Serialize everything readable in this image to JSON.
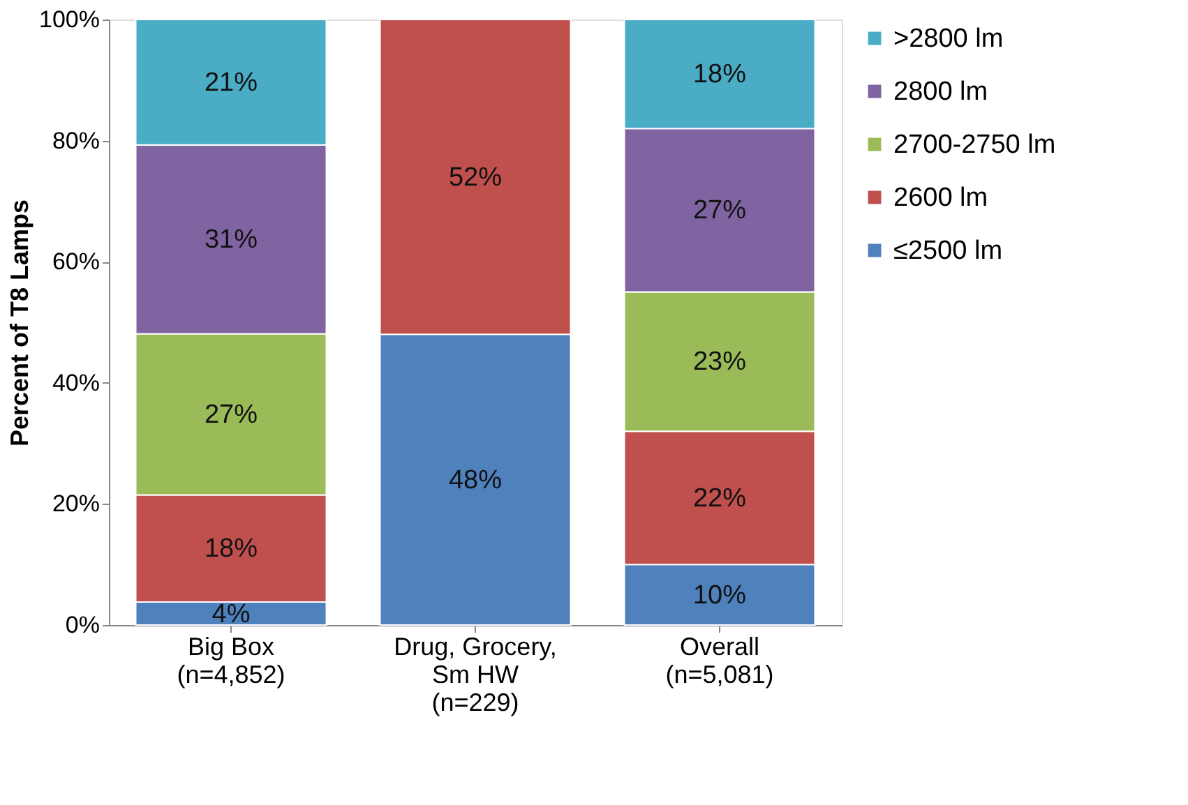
{
  "chart_data": {
    "type": "bar",
    "stacked": true,
    "ylabel": "Percent of T8 Lamps",
    "categories": [
      "Big Box\n(n=4,852)",
      "Drug, Grocery,\nSm HW\n(n=229)",
      "Overall\n(n=5,081)"
    ],
    "series": [
      {
        "name": "≤2500 lm",
        "color": "#4f81bd",
        "values": [
          3.8,
          48,
          10
        ],
        "value_labels": [
          "4%",
          "48%",
          "10%"
        ]
      },
      {
        "name": "2600 lm",
        "color": "#c0504d",
        "values": [
          17.7,
          52,
          22
        ],
        "value_labels": [
          "18%",
          "52%",
          "22%"
        ]
      },
      {
        "name": "2700-2750 lm",
        "color": "#9bbb59",
        "values": [
          26.6,
          null,
          23
        ],
        "value_labels": [
          "27%",
          null,
          "23%"
        ]
      },
      {
        "name": "2800 lm",
        "color": "#8064a2",
        "values": [
          31.2,
          null,
          27
        ],
        "value_labels": [
          "31%",
          null,
          "27%"
        ]
      },
      {
        "name": ">2800 lm",
        "color": "#4bacc6",
        "values": [
          20.7,
          null,
          18
        ],
        "value_labels": [
          "21%",
          null,
          "18%"
        ]
      }
    ],
    "ylim": [
      0,
      100
    ],
    "yticks": [
      {
        "value": 0,
        "label": "0%"
      },
      {
        "value": 20,
        "label": "20%"
      },
      {
        "value": 40,
        "label": "40%"
      },
      {
        "value": 60,
        "label": "60%"
      },
      {
        "value": 80,
        "label": "80%"
      },
      {
        "value": 100,
        "label": "100%"
      }
    ],
    "grid": false,
    "legend": "right"
  }
}
